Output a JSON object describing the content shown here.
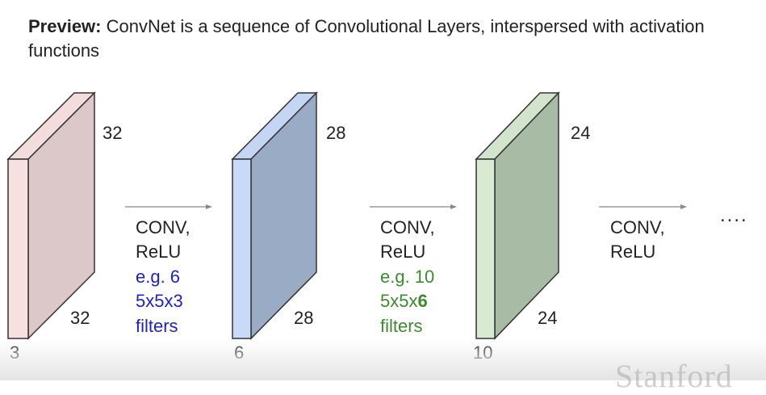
{
  "heading": {
    "bold": "Preview:",
    "text": " ConvNet is a sequence of Convolutional Layers, interspersed with activation functions"
  },
  "volumes": [
    {
      "name": "input",
      "height": "32",
      "width": "32",
      "depth": "3",
      "front_color": "#f8e0e0",
      "side_color": "#dcc8c8",
      "top_color": "#f4dcdc"
    },
    {
      "name": "conv1",
      "height": "28",
      "width": "28",
      "depth": "6",
      "front_color": "#c9daf8",
      "side_color": "#9aabc6",
      "top_color": "#c4d6f4"
    },
    {
      "name": "conv2",
      "height": "24",
      "width": "24",
      "depth": "10",
      "front_color": "#d9ead3",
      "side_color": "#a8bca5",
      "top_color": "#d2e4cc"
    }
  ],
  "steps": [
    {
      "op_line1": "CONV,",
      "op_line2": "ReLU",
      "ex_line1": "e.g. 6",
      "ex_line2_a": "5x5x3",
      "ex_line2_b": "",
      "ex_line3": "filters",
      "ex_color": "#1f22c8"
    },
    {
      "op_line1": "CONV,",
      "op_line2": "ReLU",
      "ex_line1": "e.g. 10",
      "ex_line2_a": "5x5x",
      "ex_line2_b": "6",
      "ex_line3": "filters",
      "ex_color": "#3d8b2f"
    },
    {
      "op_line1": "CONV,",
      "op_line2": "ReLU"
    }
  ],
  "ellipsis": "....",
  "watermark": "Stanford"
}
